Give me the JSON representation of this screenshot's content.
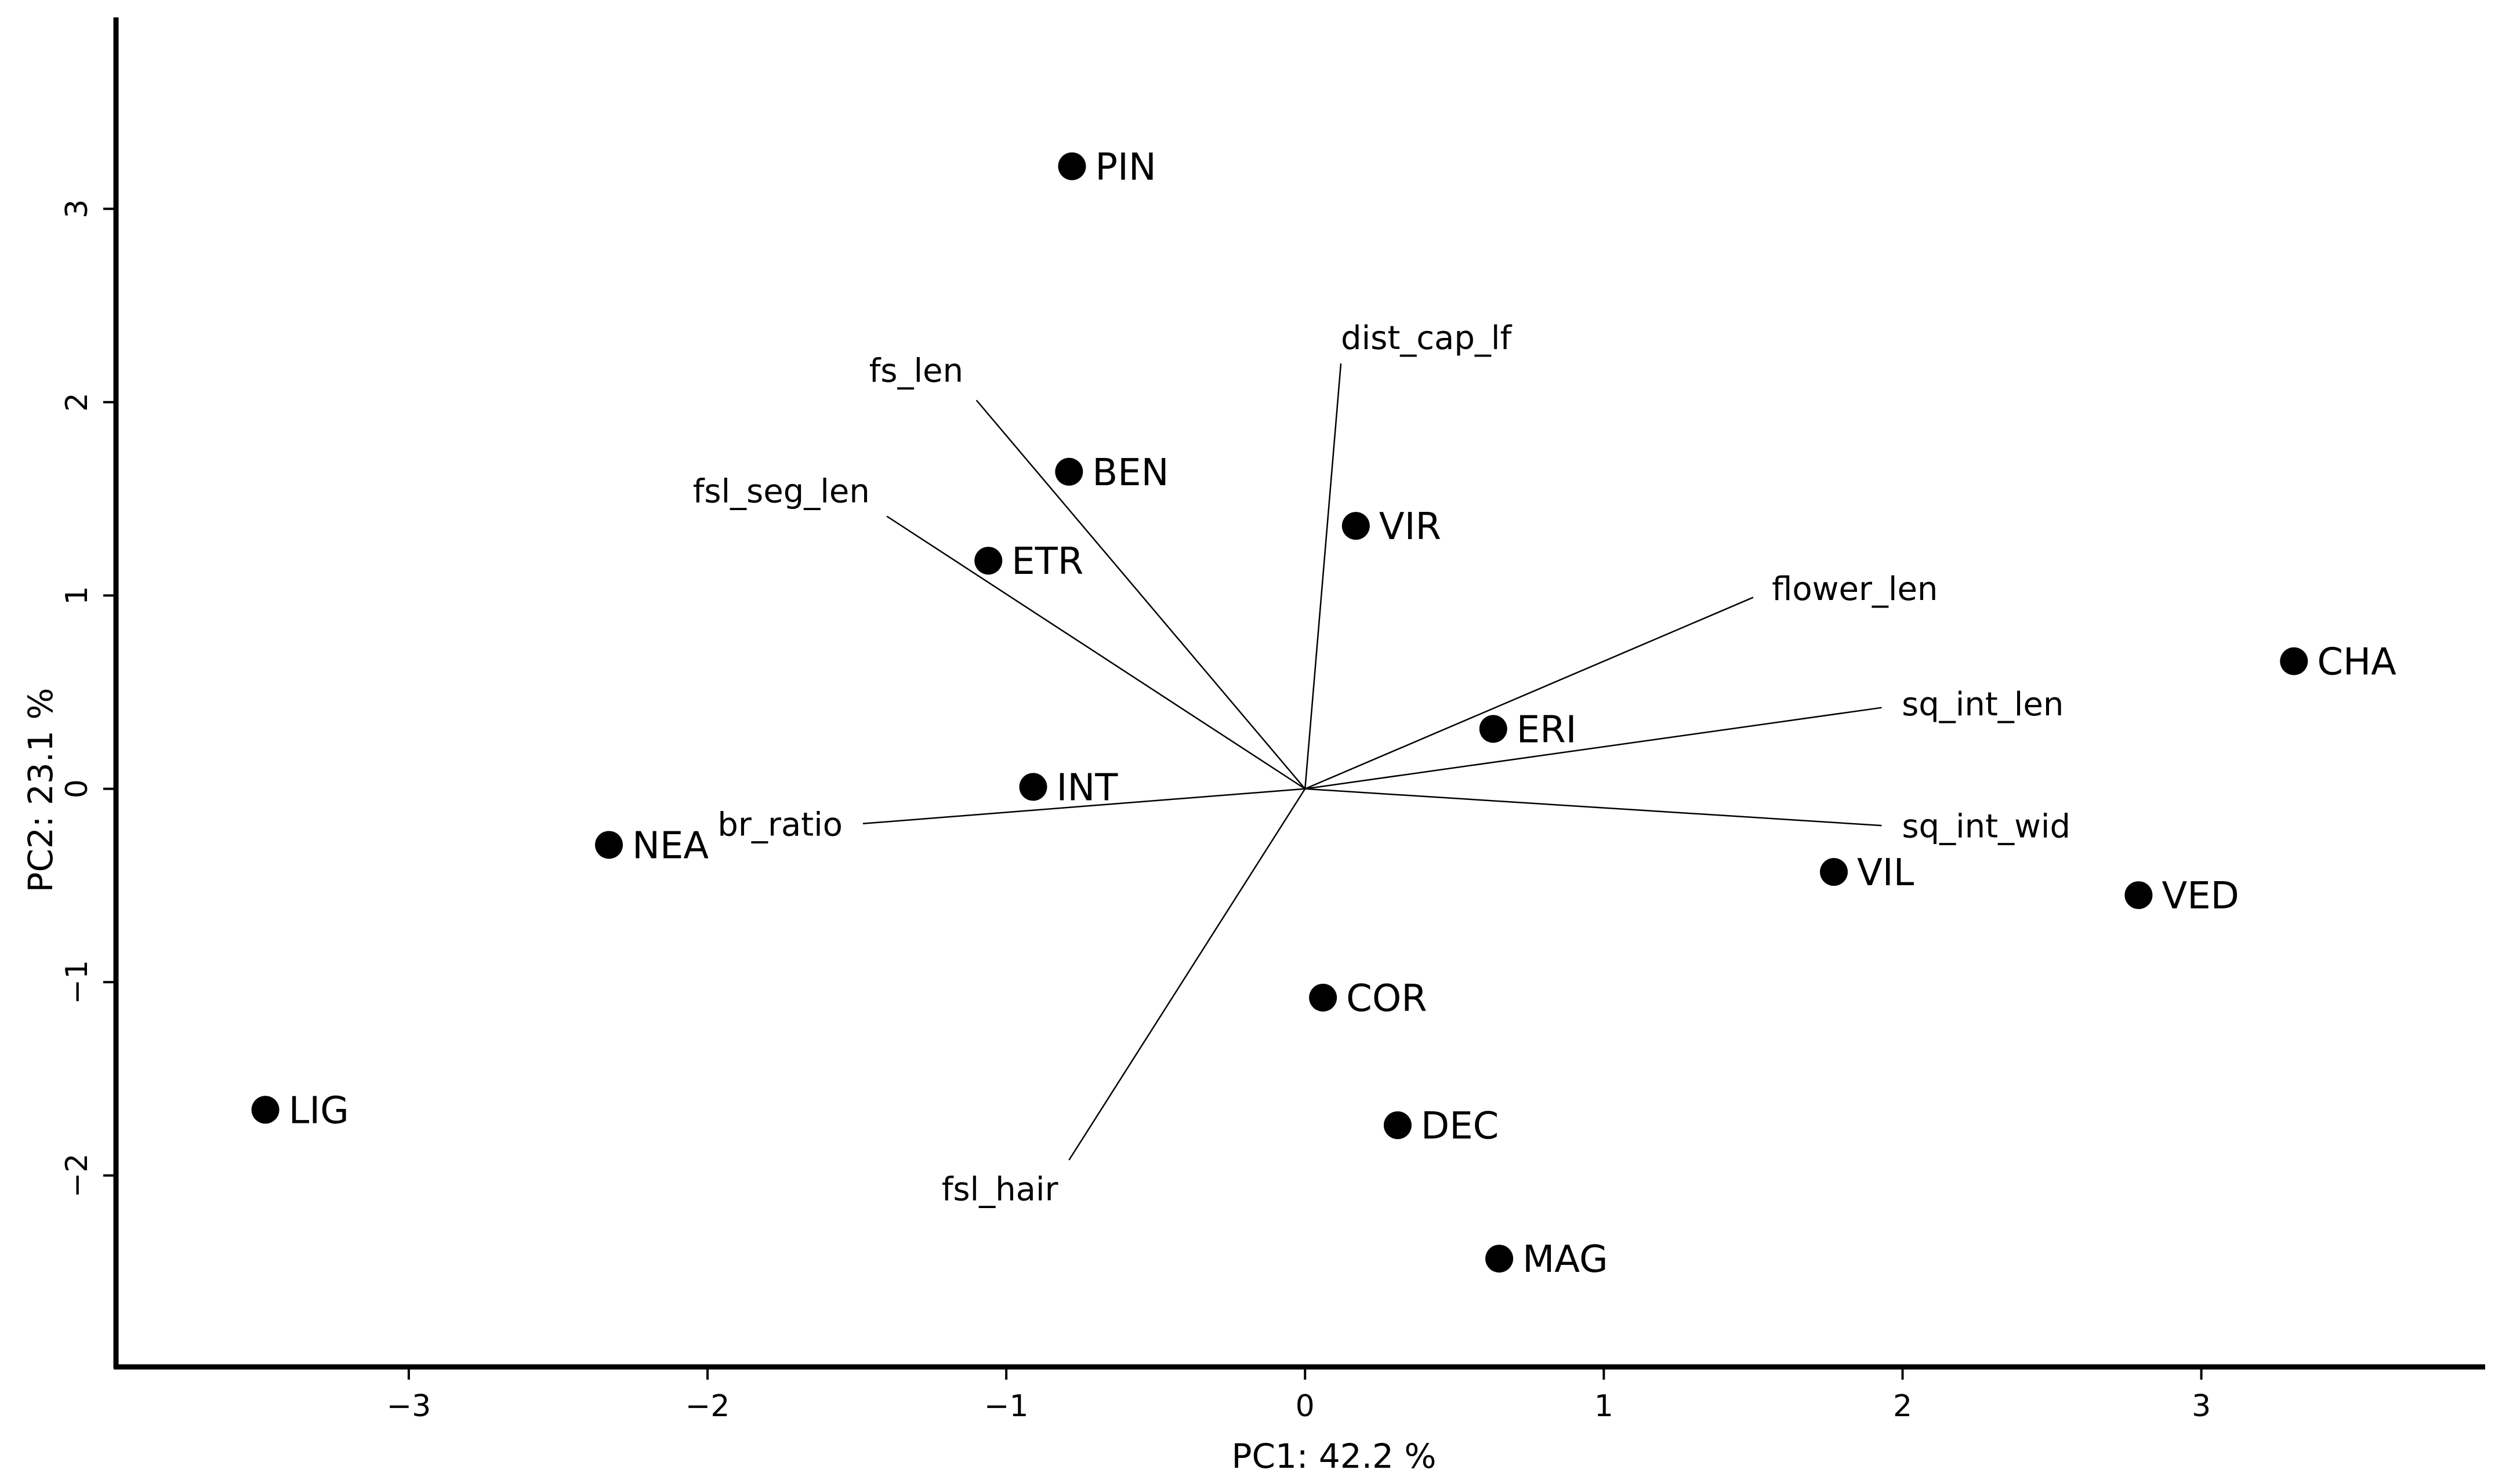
{
  "chart_data": {
    "type": "scatter",
    "xlabel": "PC1: 42.2 %",
    "ylabel": "PC2: 23.1 %",
    "xlim": [
      -3.98,
      3.95
    ],
    "ylim": [
      -2.99,
      3.99
    ],
    "xticks": [
      -3,
      -2,
      -1,
      0,
      1,
      2,
      3
    ],
    "yticks": [
      -2,
      -1,
      0,
      1,
      2,
      3
    ],
    "xtick_labels": [
      "−3",
      "−2",
      "−1",
      "0",
      "1",
      "2",
      "3"
    ],
    "ytick_labels": [
      "−2",
      "−1",
      "0",
      "1",
      "2",
      "3"
    ],
    "points": [
      {
        "label": "PIN",
        "x": -0.78,
        "y": 3.22
      },
      {
        "label": "BEN",
        "x": -0.79,
        "y": 1.64
      },
      {
        "label": "VIR",
        "x": 0.17,
        "y": 1.36
      },
      {
        "label": "ETR",
        "x": -1.06,
        "y": 1.18
      },
      {
        "label": "CHA",
        "x": 3.31,
        "y": 0.66
      },
      {
        "label": "ERI",
        "x": 0.63,
        "y": 0.31
      },
      {
        "label": "INT",
        "x": -0.91,
        "y": 0.01
      },
      {
        "label": "NEA",
        "x": -2.33,
        "y": -0.29
      },
      {
        "label": "VIL",
        "x": 1.77,
        "y": -0.43
      },
      {
        "label": "VED",
        "x": 2.79,
        "y": -0.55
      },
      {
        "label": "COR",
        "x": 0.06,
        "y": -1.08
      },
      {
        "label": "LIG",
        "x": -3.48,
        "y": -1.66
      },
      {
        "label": "DEC",
        "x": 0.31,
        "y": -1.74
      },
      {
        "label": "MAG",
        "x": 0.65,
        "y": -2.43
      }
    ],
    "loadings": [
      {
        "label": "dist_cap_lf",
        "x": 0.12,
        "y": 2.2
      },
      {
        "label": "fs_len",
        "x": -1.1,
        "y": 2.01
      },
      {
        "label": "fsl_seg_len",
        "x": -1.4,
        "y": 1.41
      },
      {
        "label": "flower_len",
        "x": 1.5,
        "y": 0.99
      },
      {
        "label": "sq_int_len",
        "x": 1.93,
        "y": 0.42
      },
      {
        "label": "sq_int_wid",
        "x": 1.93,
        "y": -0.19
      },
      {
        "label": "br_ratio",
        "x": -1.48,
        "y": -0.18
      },
      {
        "label": "fsl_hair",
        "x": -0.79,
        "y": -1.92
      }
    ]
  }
}
